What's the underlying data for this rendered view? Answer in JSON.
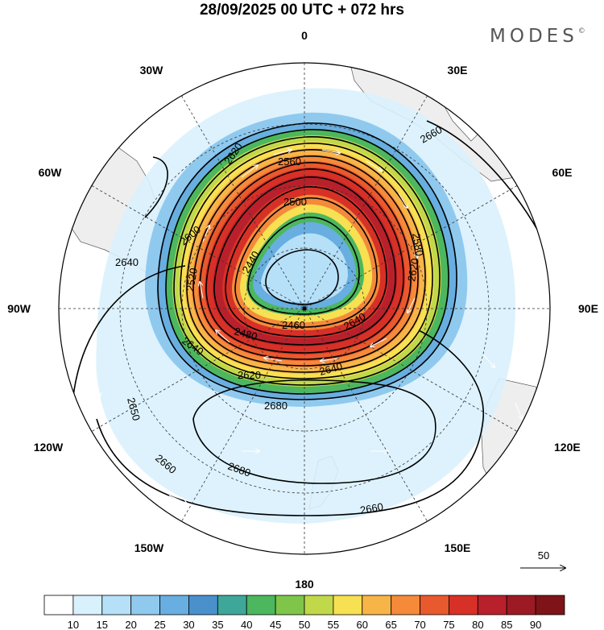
{
  "title": "28/09/2025  00 UTC  + 072 hrs",
  "brand": "MODES",
  "brand_mark": "©",
  "longitude_labels": {
    "lon_0": "0",
    "lon_30e": "30E",
    "lon_60e": "60E",
    "lon_90e": "90E",
    "lon_120e": "120E",
    "lon_150e": "150E",
    "lon_180": "180",
    "lon_150w": "150W",
    "lon_120w": "120W",
    "lon_90w": "90W",
    "lon_60w": "60W",
    "lon_30w": "30W"
  },
  "contour_labels": {
    "c1": "2620",
    "c2": "2560",
    "c3": "2500",
    "c4": "2440",
    "c5": "2520",
    "c6": "2600",
    "c7": "2640",
    "c8": "2580",
    "c9": "2620",
    "c10": "2640",
    "c11": "2460",
    "c12": "2480",
    "c13": "2640",
    "c14": "2620",
    "c15": "2640",
    "c16": "2660",
    "c17": "2680",
    "c18": "2650",
    "c19": "2660",
    "c20": "2680",
    "c21": "2660"
  },
  "vector_reference": {
    "label": "50"
  },
  "colorbar": {
    "ticks": [
      "10",
      "15",
      "20",
      "25",
      "30",
      "35",
      "40",
      "45",
      "50",
      "55",
      "60",
      "65",
      "70",
      "75",
      "80",
      "85",
      "90"
    ],
    "colors": [
      "#ffffff",
      "#d9f1fd",
      "#b5e0f8",
      "#90c9ee",
      "#68aee0",
      "#4a91cc",
      "#3fa79a",
      "#4cb75e",
      "#7ec54a",
      "#c1d84a",
      "#f7e051",
      "#f8b547",
      "#f48a3a",
      "#e8592d",
      "#d73027",
      "#b8202b",
      "#9c1a23",
      "#7e1418"
    ]
  },
  "colors": {
    "land": "#eeeeee",
    "grid": "#333333",
    "contour": "#000000"
  }
}
